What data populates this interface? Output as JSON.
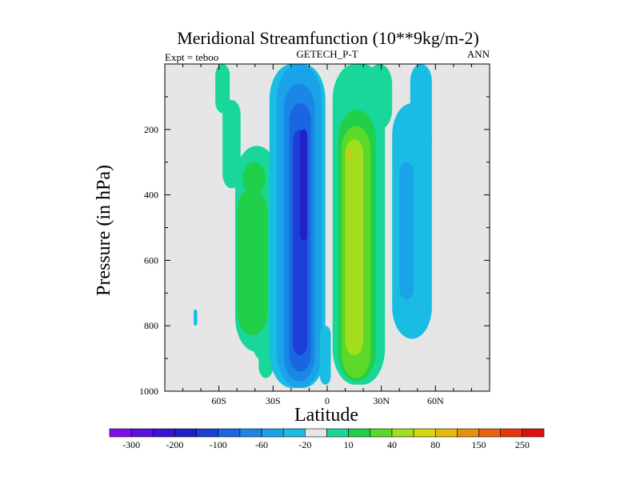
{
  "chart_data": {
    "type": "heatmap",
    "title": "Meridional Streamfunction (10**9kg/m-2)",
    "left_label": "Expt = teboo",
    "center_label": "GETECH_P-T",
    "right_label": "ANN",
    "xlabel": "Latitude",
    "ylabel": "Pressure (in hPa)",
    "xlim": [
      -90,
      90
    ],
    "ylim": [
      0,
      1000
    ],
    "x_ticks": [
      {
        "value": -60,
        "label": "60S"
      },
      {
        "value": -30,
        "label": "30S"
      },
      {
        "value": 0,
        "label": "0"
      },
      {
        "value": 30,
        "label": "30N"
      },
      {
        "value": 60,
        "label": "60N"
      }
    ],
    "y_ticks": [
      {
        "value": 200,
        "label": "200"
      },
      {
        "value": 400,
        "label": "400"
      },
      {
        "value": 600,
        "label": "600"
      },
      {
        "value": 800,
        "label": "800"
      },
      {
        "value": 1000,
        "label": "1000"
      }
    ],
    "colorbar": {
      "colors": [
        "#7d10e8",
        "#5a10e0",
        "#3a12d6",
        "#2020c8",
        "#1a3ed6",
        "#1a66e0",
        "#1a86e6",
        "#1aa3e8",
        "#19bde4",
        "#e6e6e6",
        "#19d69a",
        "#20d04a",
        "#5bd82a",
        "#a3de1e",
        "#d8d812",
        "#e6b810",
        "#e8900e",
        "#e8640e",
        "#e6380e",
        "#e01010"
      ],
      "labels": [
        "-300",
        "-200",
        "-100",
        "-60",
        "-20",
        "10",
        "40",
        "80",
        "150",
        "250"
      ]
    },
    "cells": {
      "background_level": 0,
      "level_map": {
        "-1": "#19bde4",
        "-2": "#1aa3e8",
        "-3": "#1a86e6",
        "-4": "#1a66e0",
        "-5": "#1a3ed6",
        "-6": "#2020c8",
        "1": "#19d69a",
        "2": "#20d04a",
        "3": "#5bd82a",
        "4": "#a3de1e",
        "5": "#d8d812",
        "6": "#e6b810"
      },
      "regions": [
        {
          "level": 1,
          "lat": [
            -51,
            -27
          ],
          "p_top": 250,
          "p_bot": 880
        },
        {
          "level": 1,
          "lat": [
            -43,
            -20
          ],
          "p_top": 600,
          "p_bot": 920
        },
        {
          "level": 1,
          "lat": [
            -38,
            -30
          ],
          "p_top": 650,
          "p_bot": 960
        },
        {
          "level": 1,
          "lat": [
            -58,
            -48
          ],
          "p_top": 110,
          "p_bot": 380
        },
        {
          "level": 1,
          "lat": [
            -62,
            -54
          ],
          "p_top": 0,
          "p_bot": 150
        },
        {
          "level": 2,
          "lat": [
            -50,
            -33
          ],
          "p_top": 380,
          "p_bot": 830
        },
        {
          "level": 2,
          "lat": [
            -47,
            -34
          ],
          "p_top": 300,
          "p_bot": 400
        },
        {
          "level": -1,
          "lat": [
            -32,
            -1
          ],
          "p_top": 0,
          "p_bot": 990
        },
        {
          "level": -2,
          "lat": [
            -28,
            -3
          ],
          "p_top": 0,
          "p_bot": 990
        },
        {
          "level": -3,
          "lat": [
            -24,
            -7
          ],
          "p_top": 60,
          "p_bot": 970
        },
        {
          "level": -4,
          "lat": [
            -21,
            -9
          ],
          "p_top": 120,
          "p_bot": 940
        },
        {
          "level": -5,
          "lat": [
            -19,
            -11
          ],
          "p_top": 200,
          "p_bot": 890
        },
        {
          "level": -6,
          "lat": [
            -15,
            -11
          ],
          "p_top": 200,
          "p_bot": 540
        },
        {
          "level": -1,
          "lat": [
            -4,
            2
          ],
          "p_top": 800,
          "p_bot": 980
        },
        {
          "level": 1,
          "lat": [
            3,
            32
          ],
          "p_top": 0,
          "p_bot": 980
        },
        {
          "level": 1,
          "lat": [
            22,
            36
          ],
          "p_top": 0,
          "p_bot": 200
        },
        {
          "level": 2,
          "lat": [
            6,
            27
          ],
          "p_top": 140,
          "p_bot": 970
        },
        {
          "level": 3,
          "lat": [
            8,
            24
          ],
          "p_top": 190,
          "p_bot": 960
        },
        {
          "level": 4,
          "lat": [
            10,
            20
          ],
          "p_top": 230,
          "p_bot": 890
        },
        {
          "level": 6,
          "lat": [
            11,
            14
          ],
          "p_top": 270,
          "p_bot": 285
        },
        {
          "level": -1,
          "lat": [
            36,
            58
          ],
          "p_top": 120,
          "p_bot": 840
        },
        {
          "level": -1,
          "lat": [
            46,
            58
          ],
          "p_top": 0,
          "p_bot": 300
        },
        {
          "level": -2,
          "lat": [
            40,
            48
          ],
          "p_top": 300,
          "p_bot": 720
        },
        {
          "level": -1,
          "lat": [
            -74,
            -72
          ],
          "p_top": 750,
          "p_bot": 800
        }
      ]
    }
  }
}
